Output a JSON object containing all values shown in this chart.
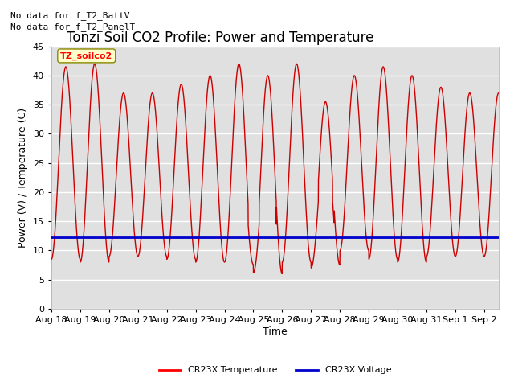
{
  "title": "Tonzi Soil CO2 Profile: Power and Temperature",
  "ylabel": "Power (V) / Temperature (C)",
  "xlabel": "Time",
  "ylim": [
    0,
    45
  ],
  "yticks": [
    0,
    5,
    10,
    15,
    20,
    25,
    30,
    35,
    40,
    45
  ],
  "annotation_lines": [
    "No data for f_T2_BattV",
    "No data for f_T2_PanelT"
  ],
  "box_label": "TZ_soilco2",
  "legend_entries": [
    "CR23X Temperature",
    "CR23X Voltage"
  ],
  "legend_colors": [
    "#ff0000",
    "#0000cc"
  ],
  "temp_color": "#cc0000",
  "voltage_color": "#0000cc",
  "fig_bg_color": "#ffffff",
  "plot_bg_color": "#e0e0e0",
  "grid_color": "#ffffff",
  "title_fontsize": 12,
  "axis_fontsize": 9,
  "tick_fontsize": 8,
  "annot_fontsize": 8,
  "xtick_labels": [
    "Aug 18",
    "Aug 19",
    "Aug 20",
    "Aug 21",
    "Aug 22",
    "Aug 23",
    "Aug 24",
    "Aug 25",
    "Aug 26",
    "Aug 27",
    "Aug 28",
    "Aug 29",
    "Aug 30",
    "Aug 31",
    "Sep 1",
    "Sep 2"
  ]
}
